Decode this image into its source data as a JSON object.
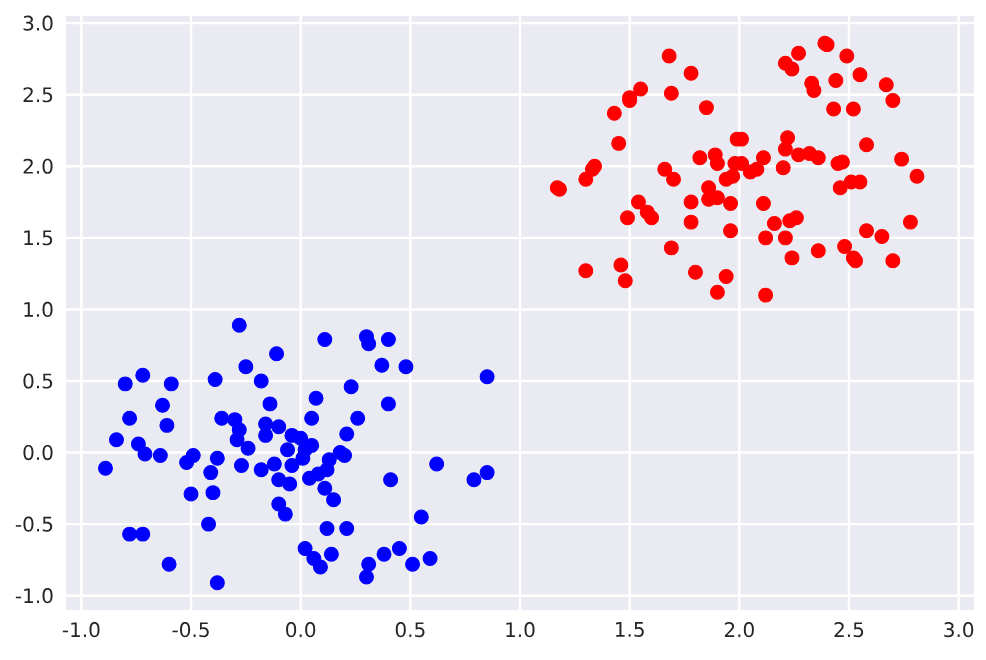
{
  "chart_data": {
    "type": "scatter",
    "grid": true,
    "xlim": [
      -1.07,
      3.07
    ],
    "ylim": [
      -1.1,
      3.05
    ],
    "xticks": [
      {
        "value": -1,
        "label": "-1.0"
      },
      {
        "value": -0.5,
        "label": "-0.5"
      },
      {
        "value": 0,
        "label": "0.0"
      },
      {
        "value": 0.5,
        "label": "0.5"
      },
      {
        "value": 1,
        "label": "1.0"
      },
      {
        "value": 1.5,
        "label": "1.5"
      },
      {
        "value": 2,
        "label": "2.0"
      },
      {
        "value": 2.5,
        "label": "2.5"
      },
      {
        "value": 3,
        "label": "3.0"
      }
    ],
    "yticks": [
      {
        "value": -1,
        "label": "-1.0"
      },
      {
        "value": -0.5,
        "label": "-0.5"
      },
      {
        "value": 0,
        "label": "0.0"
      },
      {
        "value": 0.5,
        "label": "0.5"
      },
      {
        "value": 1,
        "label": "1.0"
      },
      {
        "value": 1.5,
        "label": "1.5"
      },
      {
        "value": 2,
        "label": "2.0"
      },
      {
        "value": 2.5,
        "label": "2.5"
      },
      {
        "value": 3,
        "label": "3.0"
      }
    ],
    "series": [
      {
        "color": "#0000ff",
        "x": [
          -0.28,
          0.11,
          0.3,
          0.31,
          0.4,
          -0.11,
          -0.8,
          -0.72,
          -0.59,
          -0.39,
          -0.25,
          -0.18,
          0.37,
          0.48,
          0.85,
          0.23,
          -0.63,
          0.07,
          -0.14,
          0.4,
          -0.78,
          -0.61,
          -0.36,
          -0.3,
          -0.28,
          -0.16,
          -0.1,
          -0.16,
          0.05,
          0.26,
          0.21,
          -0.84,
          -0.74,
          -0.71,
          -0.64,
          -0.89,
          -0.52,
          -0.49,
          -0.38,
          -0.29,
          -0.24,
          -0.27,
          -0.41,
          -0.18,
          -0.12,
          -0.06,
          -0.04,
          0.0,
          0.02,
          0.05,
          0.01,
          -0.04,
          -0.1,
          -0.05,
          0.04,
          0.08,
          0.12,
          0.13,
          0.18,
          0.2,
          0.11,
          0.15,
          0.41,
          0.62,
          0.79,
          0.85,
          -0.5,
          -0.4,
          -0.1,
          -0.07,
          -0.42,
          0.12,
          0.21,
          0.55,
          -0.78,
          -0.72,
          0.02,
          0.06,
          0.09,
          0.14,
          0.38,
          0.45,
          0.31,
          0.3,
          0.51,
          0.59,
          -0.6,
          -0.38
        ],
        "values": [
          0.89,
          0.79,
          0.81,
          0.76,
          0.79,
          0.69,
          0.48,
          0.54,
          0.48,
          0.51,
          0.6,
          0.5,
          0.61,
          0.6,
          0.53,
          0.46,
          0.33,
          0.38,
          0.34,
          0.34,
          0.24,
          0.19,
          0.24,
          0.23,
          0.16,
          0.2,
          0.18,
          0.12,
          0.24,
          0.24,
          0.13,
          0.09,
          0.06,
          -0.01,
          -0.02,
          -0.11,
          -0.07,
          -0.02,
          -0.04,
          0.09,
          0.03,
          -0.09,
          -0.14,
          -0.12,
          -0.08,
          0.02,
          0.12,
          0.1,
          0.02,
          0.05,
          -0.04,
          -0.09,
          -0.19,
          -0.22,
          -0.18,
          -0.15,
          -0.12,
          -0.05,
          0.0,
          -0.02,
          -0.25,
          -0.33,
          -0.19,
          -0.08,
          -0.19,
          -0.14,
          -0.29,
          -0.28,
          -0.36,
          -0.43,
          -0.5,
          -0.53,
          -0.53,
          -0.45,
          -0.57,
          -0.57,
          -0.67,
          -0.74,
          -0.8,
          -0.71,
          -0.71,
          -0.67,
          -0.78,
          -0.87,
          -0.78,
          -0.74,
          -0.78,
          -0.91
        ]
      },
      {
        "color": "#ff0000",
        "x": [
          1.68,
          1.78,
          1.55,
          1.5,
          1.5,
          1.43,
          1.69,
          1.85,
          1.45,
          2.21,
          2.24,
          2.27,
          2.39,
          2.4,
          2.49,
          2.33,
          2.34,
          2.44,
          2.55,
          2.67,
          2.7,
          2.43,
          2.52,
          1.17,
          1.18,
          1.3,
          1.33,
          1.34,
          1.66,
          1.7,
          1.82,
          1.89,
          1.9,
          1.99,
          2.01,
          1.98,
          2.01,
          1.94,
          1.97,
          2.05,
          2.08,
          2.11,
          1.86,
          1.86,
          1.9,
          1.78,
          1.96,
          2.11,
          2.2,
          2.22,
          2.21,
          2.27,
          2.32,
          2.36,
          2.45,
          2.47,
          2.58,
          2.46,
          2.51,
          2.55,
          2.74,
          2.81,
          1.54,
          1.49,
          1.58,
          1.6,
          1.78,
          1.96,
          2.16,
          2.23,
          2.26,
          2.12,
          2.21,
          2.58,
          2.65,
          2.78,
          1.69,
          2.24,
          2.36,
          2.48,
          2.52,
          2.53,
          2.7,
          1.3,
          1.46,
          1.48,
          1.8,
          1.94,
          1.9,
          2.12
        ],
        "values": [
          2.77,
          2.65,
          2.54,
          2.48,
          2.46,
          2.37,
          2.51,
          2.41,
          2.16,
          2.72,
          2.68,
          2.79,
          2.86,
          2.85,
          2.77,
          2.58,
          2.53,
          2.6,
          2.64,
          2.57,
          2.46,
          2.4,
          2.4,
          1.85,
          1.84,
          1.91,
          1.98,
          2.0,
          1.98,
          1.91,
          2.06,
          2.08,
          2.02,
          2.19,
          2.19,
          2.02,
          2.02,
          1.91,
          1.93,
          1.96,
          1.98,
          2.06,
          1.85,
          1.77,
          1.78,
          1.75,
          1.74,
          1.74,
          1.99,
          2.2,
          2.12,
          2.08,
          2.09,
          2.06,
          2.02,
          2.03,
          2.15,
          1.85,
          1.89,
          1.89,
          2.05,
          1.93,
          1.75,
          1.64,
          1.68,
          1.64,
          1.61,
          1.55,
          1.6,
          1.62,
          1.64,
          1.5,
          1.5,
          1.55,
          1.51,
          1.61,
          1.43,
          1.36,
          1.41,
          1.44,
          1.36,
          1.34,
          1.34,
          1.27,
          1.31,
          1.2,
          1.26,
          1.23,
          1.12,
          1.1
        ]
      }
    ]
  }
}
